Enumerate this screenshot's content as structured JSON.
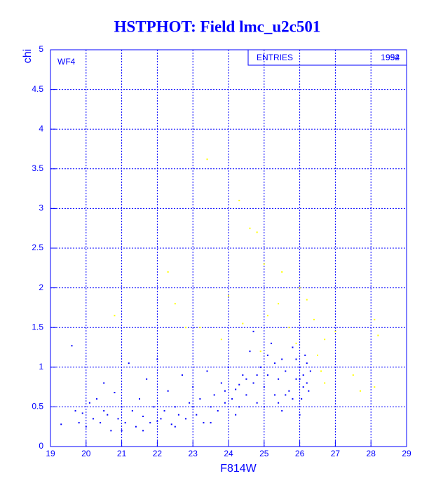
{
  "chart_data": {
    "type": "scatter",
    "title": "HSTPHOT: Field lmc_u2c501",
    "xlabel": "F814W",
    "ylabel": "chi",
    "annotation": "WF4",
    "stats": {
      "label": "ENTRIES",
      "entries": [
        1954,
        992
      ]
    },
    "xlim": [
      19,
      29
    ],
    "ylim": [
      0,
      5
    ],
    "xticks": [
      19,
      20,
      21,
      22,
      23,
      24,
      25,
      26,
      27,
      28,
      29
    ],
    "yticks": [
      0,
      0.5,
      1,
      1.5,
      2,
      2.5,
      3,
      3.5,
      4,
      4.5,
      5
    ],
    "grid": true,
    "series": [
      {
        "color": "#0000ff",
        "x": [
          19.3,
          19.6,
          19.7,
          19.8,
          19.9,
          20.0,
          20.1,
          20.2,
          20.3,
          20.4,
          20.5,
          20.6,
          20.7,
          20.8,
          20.9,
          21.0,
          21.1,
          21.2,
          21.3,
          21.4,
          21.5,
          21.6,
          21.7,
          21.8,
          21.9,
          22.0,
          22.1,
          22.2,
          22.3,
          22.4,
          22.5,
          22.6,
          22.7,
          22.8,
          22.9,
          23.0,
          23.1,
          23.2,
          23.3,
          23.4,
          23.5,
          23.6,
          23.7,
          23.8,
          23.9,
          24.0,
          24.1,
          24.2,
          24.3,
          24.4,
          24.5,
          24.6,
          24.7,
          24.8,
          24.9,
          25.0,
          25.1,
          25.2,
          25.3,
          25.4,
          25.5,
          25.6,
          25.7,
          25.8,
          25.9,
          26.0,
          26.05,
          26.1,
          26.15,
          26.2,
          26.25,
          26.3,
          23.5,
          24.2,
          25.0,
          25.5,
          26.0,
          25.8,
          26.2,
          24.8,
          25.3,
          24.5,
          23.9,
          22.5,
          21.0,
          20.5,
          24.7,
          25.1,
          26.1,
          25.6,
          25.9,
          24.3,
          23.0,
          22.0,
          21.6,
          26.0,
          25.4
        ],
        "y": [
          0.28,
          1.27,
          0.45,
          0.3,
          0.42,
          0.25,
          0.55,
          0.35,
          0.6,
          0.3,
          0.8,
          0.4,
          0.2,
          0.68,
          0.35,
          0.5,
          0.3,
          1.05,
          0.45,
          0.25,
          0.6,
          0.38,
          0.85,
          0.3,
          0.5,
          1.1,
          0.35,
          0.45,
          0.7,
          0.28,
          0.5,
          0.4,
          0.9,
          0.35,
          0.55,
          0.75,
          0.4,
          0.6,
          0.3,
          0.95,
          0.5,
          0.65,
          0.45,
          0.8,
          0.55,
          1.0,
          0.6,
          0.72,
          0.5,
          0.9,
          0.65,
          1.2,
          0.8,
          0.55,
          1.0,
          0.75,
          0.9,
          1.3,
          0.65,
          0.85,
          1.1,
          0.95,
          0.7,
          1.25,
          0.85,
          1.0,
          0.6,
          0.9,
          1.15,
          0.8,
          0.7,
          0.95,
          0.3,
          0.4,
          0.5,
          0.45,
          0.4,
          0.6,
          1.05,
          0.9,
          1.05,
          0.85,
          0.7,
          0.25,
          0.2,
          0.45,
          1.45,
          1.15,
          0.75,
          0.65,
          1.1,
          0.78,
          0.5,
          0.32,
          0.2,
          0.85,
          0.55
        ]
      },
      {
        "color": "#ffff00",
        "x": [
          23.4,
          24.3,
          24.6,
          24.8,
          25.0,
          25.5,
          26.0,
          26.2,
          25.4,
          24.0,
          22.5,
          22.3,
          20.8,
          23.2,
          23.8,
          24.4,
          25.1,
          25.7,
          26.4,
          26.7,
          27.0,
          26.6,
          27.5,
          27.7,
          28.1,
          28.2,
          28.1,
          26.7,
          26.5,
          24.9,
          25.9,
          22.8
        ],
        "y": [
          3.62,
          3.1,
          2.75,
          2.7,
          2.3,
          2.2,
          2.0,
          1.85,
          1.8,
          1.9,
          1.8,
          2.2,
          1.65,
          1.5,
          1.35,
          1.55,
          1.65,
          1.5,
          1.6,
          1.35,
          1.45,
          0.95,
          0.9,
          0.7,
          1.6,
          1.4,
          0.75,
          0.8,
          1.15,
          1.2,
          1.3,
          1.5
        ]
      }
    ]
  }
}
